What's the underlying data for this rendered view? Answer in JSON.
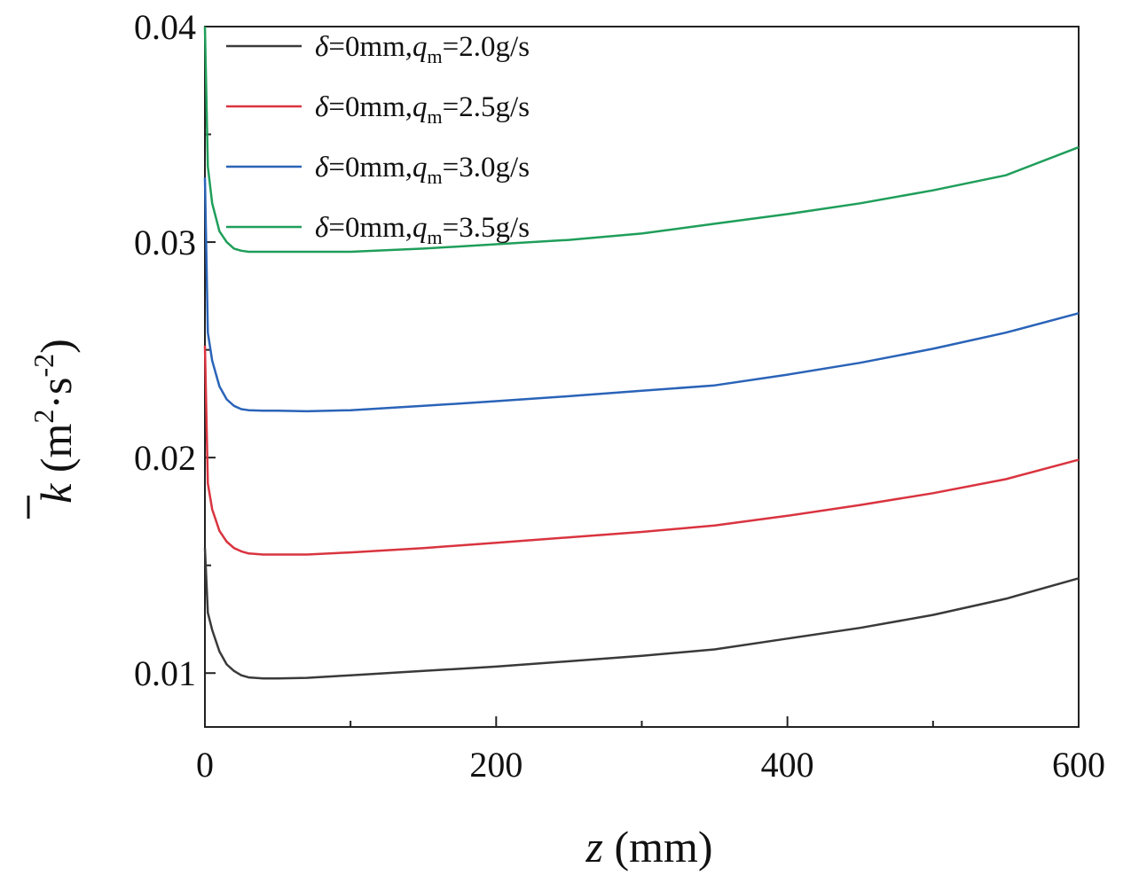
{
  "chart_data": {
    "type": "line",
    "title": "",
    "xlabel": "z (mm)",
    "ylabel": "k̄ (m²·s⁻²)",
    "xlabel_parts": {
      "var": "z",
      "unit": " (mm)"
    },
    "ylabel_parts": {
      "var": "k",
      "open": " (m",
      "sup1": "2",
      "mid": "·s",
      "sup2": "-2",
      "close": ")"
    },
    "xlim": [
      0,
      600
    ],
    "ylim": [
      0.0075,
      0.04
    ],
    "x_ticks": [
      0,
      200,
      400,
      600
    ],
    "x_tick_labels": [
      "0",
      "200",
      "400",
      "600"
    ],
    "x_minor_ticks": [
      100,
      300,
      500
    ],
    "y_ticks": [
      0.01,
      0.02,
      0.03,
      0.04
    ],
    "y_tick_labels": [
      "0.01",
      "0.02",
      "0.03",
      "0.04"
    ],
    "y_minor_ticks": [
      0.015,
      0.025,
      0.035
    ],
    "grid": false,
    "legend_position": "top-left",
    "series": [
      {
        "name": "δ=0mm,qm=2.0g/s",
        "legend": {
          "delta": "δ",
          "pre": "=0mm,",
          "q": "q",
          "sub": "m",
          "post": "=2.0g/s"
        },
        "color": "#3a3a3a",
        "x": [
          0,
          2,
          5,
          10,
          15,
          20,
          25,
          30,
          40,
          50,
          70,
          100,
          150,
          200,
          250,
          300,
          350,
          400,
          450,
          500,
          550,
          600
        ],
        "y": [
          0.0158,
          0.0128,
          0.012,
          0.011,
          0.0104,
          0.0101,
          0.0099,
          0.0098,
          0.00975,
          0.00975,
          0.00978,
          0.0099,
          0.0101,
          0.0103,
          0.01055,
          0.0108,
          0.0111,
          0.0116,
          0.0121,
          0.0127,
          0.01345,
          0.0144
        ]
      },
      {
        "name": "δ=0mm,qm=2.5g/s",
        "legend": {
          "delta": "δ",
          "pre": "=0mm,",
          "q": "q",
          "sub": "m",
          "post": "=2.5g/s"
        },
        "color": "#d9343f",
        "x": [
          0,
          2,
          5,
          10,
          15,
          20,
          25,
          30,
          40,
          50,
          70,
          100,
          150,
          200,
          250,
          300,
          350,
          400,
          450,
          500,
          550,
          600
        ],
        "y": [
          0.0252,
          0.0188,
          0.0176,
          0.0166,
          0.0161,
          0.0158,
          0.01565,
          0.01555,
          0.0155,
          0.0155,
          0.0155,
          0.0156,
          0.0158,
          0.01605,
          0.0163,
          0.01655,
          0.01685,
          0.0173,
          0.0178,
          0.01835,
          0.019,
          0.0199
        ]
      },
      {
        "name": "δ=0mm,qm=3.0g/s",
        "legend": {
          "delta": "δ",
          "pre": "=0mm,",
          "q": "q",
          "sub": "m",
          "post": "=3.0g/s"
        },
        "color": "#2a63b8",
        "x": [
          0,
          2,
          5,
          10,
          15,
          20,
          25,
          30,
          40,
          50,
          70,
          100,
          150,
          200,
          250,
          300,
          350,
          400,
          450,
          500,
          550,
          600
        ],
        "y": [
          0.033,
          0.0258,
          0.0245,
          0.0233,
          0.0227,
          0.0224,
          0.02225,
          0.0222,
          0.02218,
          0.02218,
          0.02215,
          0.0222,
          0.0224,
          0.02262,
          0.02285,
          0.0231,
          0.02335,
          0.02385,
          0.0244,
          0.02505,
          0.0258,
          0.0267
        ]
      },
      {
        "name": "δ=0mm,qm=3.5g/s",
        "legend": {
          "delta": "δ",
          "pre": "=0mm,",
          "q": "q",
          "sub": "m",
          "post": "=3.5g/s"
        },
        "color": "#1f9e5a",
        "x": [
          0,
          2,
          5,
          10,
          15,
          20,
          25,
          30,
          40,
          50,
          70,
          100,
          150,
          200,
          250,
          300,
          350,
          400,
          450,
          500,
          550,
          600
        ],
        "y": [
          0.04,
          0.0335,
          0.0318,
          0.0305,
          0.03,
          0.0297,
          0.0296,
          0.02955,
          0.02955,
          0.02955,
          0.02955,
          0.02955,
          0.0297,
          0.0299,
          0.0301,
          0.0304,
          0.03085,
          0.0313,
          0.0318,
          0.0324,
          0.0331,
          0.0344
        ]
      }
    ]
  }
}
